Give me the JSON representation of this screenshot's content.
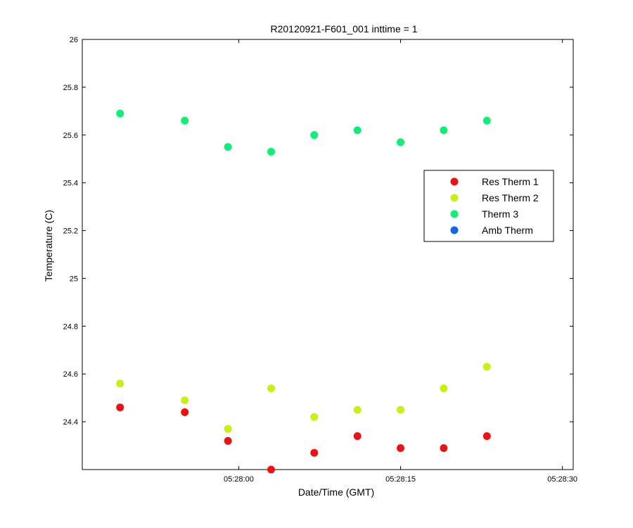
{
  "chart_data": {
    "type": "scatter",
    "title": "R20120921-F601_001 inttime = 1",
    "xlabel": "Date/Time (GMT)",
    "ylabel": "Temperature (C)",
    "ylim": [
      24.2,
      26.0
    ],
    "y_ticks": [
      "24.4",
      "24.6",
      "24.8",
      "25",
      "25.2",
      "25.4",
      "25.6",
      "25.8",
      "26"
    ],
    "x_ticks": [
      {
        "t": "05:28:00",
        "label": "05:28:00"
      },
      {
        "t": "05:28:15",
        "label": "05:28:15"
      },
      {
        "t": "05:28:30",
        "label": "05:28:30"
      }
    ],
    "xlim": [
      "05:27:45.5",
      "05:28:31"
    ],
    "x": [
      "05:27:49",
      "05:27:55",
      "05:27:59",
      "05:28:03",
      "05:28:07",
      "05:28:11",
      "05:28:15",
      "05:28:19",
      "05:28:23"
    ],
    "legend_position": "right-center",
    "series": [
      {
        "name": "Res Therm 1",
        "color": "#ee1111",
        "values": [
          24.46,
          24.44,
          24.32,
          24.2,
          24.27,
          24.34,
          24.29,
          24.29,
          24.34
        ]
      },
      {
        "name": "Res Therm 2",
        "color": "#ccee11",
        "values": [
          24.56,
          24.49,
          24.37,
          24.54,
          24.42,
          24.45,
          24.45,
          24.54,
          24.63
        ]
      },
      {
        "name": "Therm 3",
        "color": "#11ee77",
        "values": [
          25.69,
          25.66,
          25.55,
          25.53,
          25.6,
          25.62,
          25.57,
          25.62,
          25.66
        ]
      },
      {
        "name": "Amb Therm",
        "color": "#1166ee",
        "values": []
      }
    ]
  }
}
